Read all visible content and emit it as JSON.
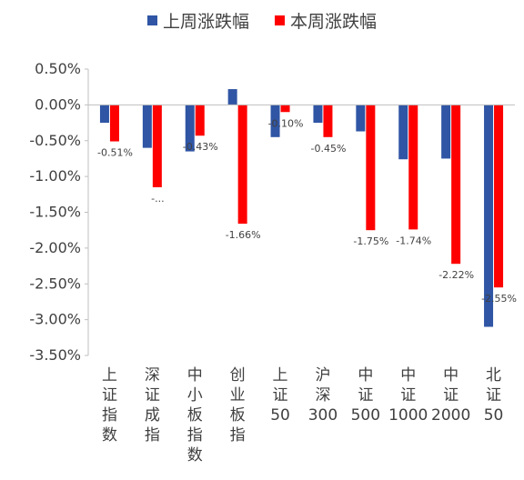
{
  "chart_data": {
    "type": "bar",
    "categories": [
      "上证指数",
      "深证成指",
      "中小板指数",
      "创业板指",
      "上证50",
      "沪深300",
      "中证500",
      "中证1000",
      "中证2000",
      "北证50"
    ],
    "series": [
      {
        "name": "上周涨跌幅",
        "color": "#2F55A4",
        "values": [
          -0.25,
          -0.6,
          -0.65,
          0.22,
          -0.45,
          -0.25,
          -0.37,
          -0.76,
          -0.75,
          -3.1
        ]
      },
      {
        "name": "本周涨跌幅",
        "color": "#FF0000",
        "values": [
          -0.51,
          -1.15,
          -0.43,
          -1.66,
          -0.1,
          -0.45,
          -1.75,
          -1.74,
          -2.22,
          -2.55
        ]
      }
    ],
    "data_labels": [
      "-0.51%",
      "-...",
      "-0.43%",
      "-1.66%",
      "-0.10%",
      "-0.45%",
      "-1.75%",
      "-1.74%",
      "-2.22%",
      "-2.55%"
    ],
    "yticks": [
      "0.50%",
      "0.00%",
      "-0.50%",
      "-1.00%",
      "-1.50%",
      "-2.00%",
      "-2.50%",
      "-3.00%",
      "-3.50%"
    ],
    "ylim": [
      -3.5,
      0.5
    ],
    "legend_position": "top",
    "grid": false
  }
}
